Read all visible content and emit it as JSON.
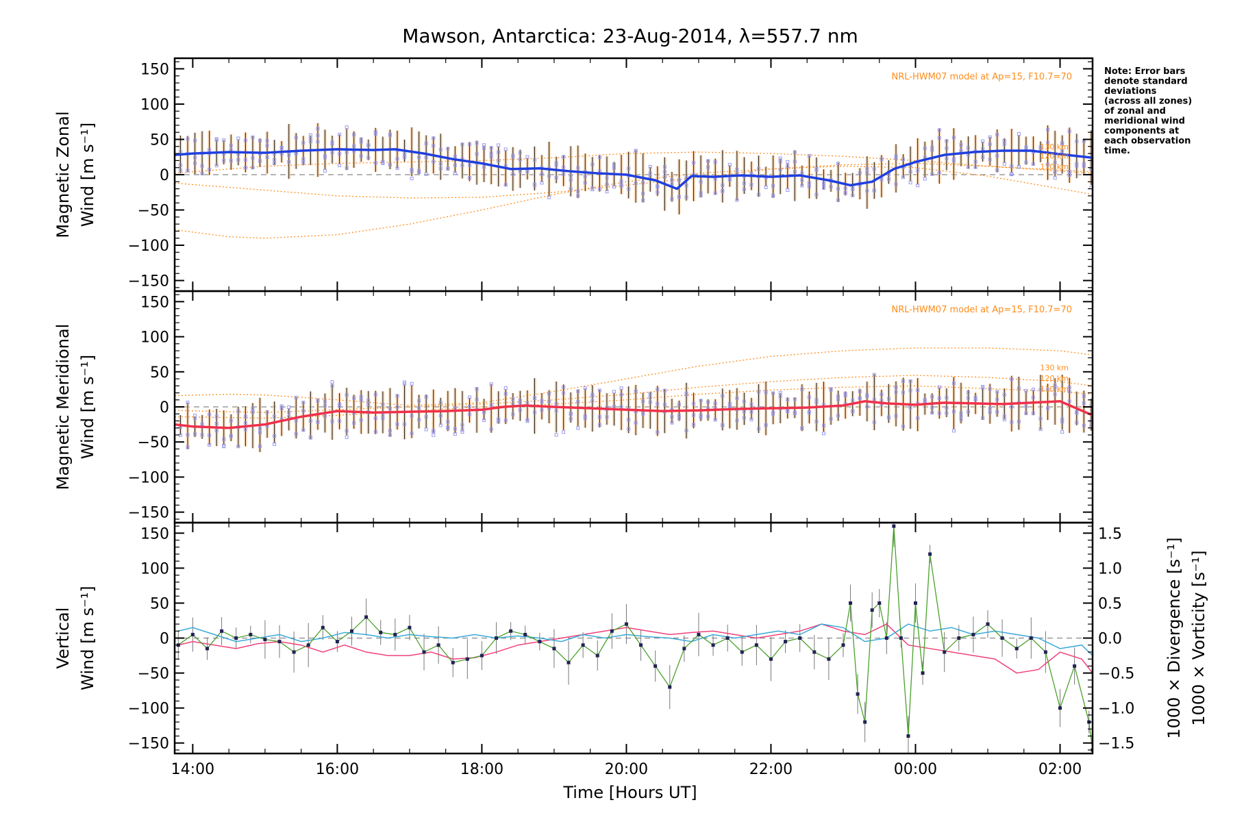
{
  "title": "Mawson, Antarctica: 23-Aug-2014, λ=557.7 nm",
  "xlabel": "Time [Hours UT]",
  "note_lines": [
    "Note: Error bars",
    "denote standard",
    "deviations",
    "(across all zones)",
    "of zonal and",
    "meridional wind",
    "components at",
    "each observation",
    "time."
  ],
  "colors": {
    "zonal": "#1f3fe0",
    "meridional": "#f0304a",
    "vertical": "#4aa02c",
    "divergence": "#39a8d8",
    "vorticity": "#f0407a",
    "model": "#ff8c1a",
    "zone_points": "#9999ee"
  },
  "chart_data": [
    {
      "type": "line",
      "panel": "zonal",
      "ylabel_lines": [
        "Magnetic Zonal",
        "Wind [m s⁻¹]"
      ],
      "model_label": "NRL-HWM07 model at Ap=15, F10.7=70",
      "altitude_labels": [
        "130 km",
        "120 km",
        "110 km"
      ],
      "ylim": [
        -165,
        165
      ],
      "yticks": [
        "150",
        "100",
        "50",
        "0",
        "−50",
        "−100",
        "−150"
      ],
      "xlim": [
        13.75,
        26.45
      ],
      "xticks": [
        "14:00",
        "16:00",
        "18:00",
        "20:00",
        "22:00",
        "00:00",
        "02:00"
      ],
      "series": [
        {
          "x": [
            13.75,
            14.0,
            14.5,
            15.0,
            15.5,
            16.0,
            16.5,
            16.8,
            17.2,
            17.6,
            18.0,
            18.4,
            18.8,
            19.2,
            19.6,
            20.0,
            20.4,
            20.7,
            20.9,
            21.2,
            21.6,
            22.0,
            22.4,
            22.8,
            23.1,
            23.4,
            23.7,
            24.0,
            24.4,
            24.8,
            25.2,
            25.6,
            26.0,
            26.45
          ],
          "y": [
            28,
            30,
            32,
            31,
            34,
            36,
            35,
            36,
            30,
            22,
            16,
            8,
            9,
            5,
            2,
            0,
            -8,
            -20,
            -2,
            -3,
            -1,
            -3,
            -1,
            -8,
            -15,
            -10,
            8,
            18,
            28,
            32,
            34,
            34,
            29,
            24
          ]
        }
      ],
      "model_lines": [
        {
          "x": [
            13.75,
            15,
            16,
            17,
            18,
            19,
            20,
            21,
            22,
            23,
            24,
            25,
            26.45
          ],
          "y": [
            2,
            12,
            16,
            18,
            20,
            24,
            30,
            32,
            30,
            26,
            20,
            12,
            2
          ]
        },
        {
          "x": [
            13.75,
            15,
            16,
            17,
            18,
            19,
            20,
            21,
            22,
            23,
            24,
            25,
            26.45
          ],
          "y": [
            -12,
            -22,
            -30,
            -33,
            -32,
            -25,
            -15,
            -4,
            8,
            14,
            16,
            12,
            4
          ]
        },
        {
          "x": [
            13.75,
            14.5,
            15,
            16,
            17,
            18,
            19,
            20,
            21,
            22,
            23,
            24,
            25,
            26.45
          ],
          "y": [
            -78,
            -88,
            -90,
            -85,
            -70,
            -50,
            -28,
            -10,
            2,
            8,
            12,
            10,
            -2,
            -28
          ]
        }
      ]
    },
    {
      "type": "line",
      "panel": "meridional",
      "ylabel_lines": [
        "Magnetic Meridional",
        "Wind [m s⁻¹]"
      ],
      "model_label": "NRL-HWM07 model at Ap=15, F10.7=70",
      "altitude_labels": [
        "130 km",
        "120 km",
        "110 km"
      ],
      "ylim": [
        -165,
        165
      ],
      "yticks": [
        "150",
        "100",
        "50",
        "0",
        "−50",
        "−100",
        "−150"
      ],
      "xlim": [
        13.75,
        26.45
      ],
      "xticks": [
        "14:00",
        "16:00",
        "18:00",
        "20:00",
        "22:00",
        "00:00",
        "02:00"
      ],
      "series": [
        {
          "x": [
            13.75,
            14.0,
            14.5,
            15.0,
            15.5,
            16.0,
            16.5,
            17.0,
            17.5,
            18.0,
            18.3,
            18.6,
            19.0,
            19.5,
            20.0,
            20.5,
            21.0,
            21.5,
            22.0,
            22.5,
            23.0,
            23.3,
            23.6,
            24.0,
            24.4,
            24.8,
            25.2,
            25.6,
            26.0,
            26.45
          ],
          "y": [
            -25,
            -28,
            -30,
            -25,
            -14,
            -6,
            -8,
            -7,
            -6,
            -4,
            0,
            2,
            0,
            -2,
            -4,
            -6,
            -5,
            -3,
            -2,
            -1,
            2,
            8,
            5,
            3,
            6,
            5,
            4,
            6,
            8,
            -12
          ]
        }
      ],
      "model_lines": [
        {
          "x": [
            13.75,
            14.5,
            15,
            16,
            17,
            18,
            19,
            20,
            21,
            22,
            23,
            24,
            25,
            26,
            26.45
          ],
          "y": [
            16,
            18,
            17,
            10,
            2,
            6,
            22,
            40,
            58,
            72,
            80,
            84,
            84,
            80,
            74
          ]
        },
        {
          "x": [
            13.75,
            15,
            16,
            17,
            18,
            19,
            20,
            21,
            22,
            23,
            24,
            25,
            26,
            26.45
          ],
          "y": [
            -5,
            -8,
            -4,
            0,
            4,
            10,
            18,
            28,
            36,
            42,
            45,
            42,
            36,
            30
          ]
        },
        {
          "x": [
            13.75,
            15,
            16,
            17,
            18,
            19,
            20,
            21,
            22,
            23,
            24,
            25,
            26,
            26.45
          ],
          "y": [
            -14,
            -16,
            -12,
            -6,
            0,
            4,
            10,
            18,
            24,
            28,
            30,
            26,
            22,
            18
          ]
        }
      ]
    },
    {
      "type": "line",
      "panel": "vertical",
      "ylabel_lines": [
        "Vertical",
        "Wind [m s⁻¹]"
      ],
      "ylim": [
        -165,
        165
      ],
      "yticks": [
        "150",
        "100",
        "50",
        "0",
        "−50",
        "−100",
        "−150"
      ],
      "y2label_lines": [
        "1000 × Divergence [s⁻¹]",
        "1000 × Vorticity [s⁻¹]"
      ],
      "y2lim": [
        -1.65,
        1.65
      ],
      "y2ticks": [
        "1.5",
        "1.0",
        "0.5",
        "0.0",
        "−0.5",
        "−1.0",
        "−1.5"
      ],
      "xlim": [
        13.75,
        26.45
      ],
      "xticks": [
        "14:00",
        "16:00",
        "18:00",
        "20:00",
        "22:00",
        "00:00",
        "02:00"
      ],
      "series": [
        {
          "name": "",
          "axis": "y",
          "x": [
            13.8,
            14.0,
            14.2,
            14.4,
            14.6,
            14.8,
            15.0,
            15.2,
            15.4,
            15.6,
            15.8,
            16.0,
            16.2,
            16.4,
            16.6,
            16.8,
            17.0,
            17.2,
            17.4,
            17.6,
            17.8,
            18.0,
            18.2,
            18.4,
            18.6,
            18.8,
            19.0,
            19.2,
            19.4,
            19.6,
            19.8,
            20.0,
            20.2,
            20.4,
            20.6,
            20.8,
            21.0,
            21.2,
            21.4,
            21.6,
            21.8,
            22.0,
            22.2,
            22.4,
            22.6,
            22.8,
            23.0,
            23.1,
            23.2,
            23.3,
            23.4,
            23.5,
            23.6,
            23.7,
            23.8,
            23.9,
            24.0,
            24.1,
            24.2,
            24.4,
            24.6,
            24.8,
            25.0,
            25.2,
            25.4,
            25.6,
            25.8,
            26.0,
            26.2,
            26.4,
            26.45
          ],
          "y": [
            -10,
            5,
            -15,
            10,
            0,
            5,
            -2,
            -5,
            -20,
            -10,
            15,
            -5,
            10,
            30,
            8,
            5,
            15,
            -20,
            -10,
            -35,
            -30,
            -25,
            0,
            10,
            5,
            -5,
            -15,
            -35,
            -10,
            -25,
            10,
            20,
            -10,
            -40,
            -70,
            -15,
            5,
            -10,
            0,
            -20,
            -10,
            -30,
            -5,
            0,
            -20,
            -30,
            -10,
            50,
            -80,
            -120,
            40,
            50,
            0,
            160,
            0,
            -140,
            50,
            -50,
            120,
            -20,
            0,
            5,
            20,
            0,
            -15,
            0,
            -20,
            -100,
            -40,
            -120,
            -160
          ]
        },
        {
          "name": "",
          "axis": "y2",
          "x": [
            13.8,
            14.0,
            14.3,
            14.6,
            14.9,
            15.2,
            15.5,
            15.8,
            16.1,
            16.4,
            16.7,
            17.0,
            17.3,
            17.6,
            17.9,
            18.2,
            18.5,
            18.8,
            19.1,
            19.4,
            19.7,
            20.0,
            20.3,
            20.6,
            20.9,
            21.2,
            21.5,
            21.8,
            22.1,
            22.4,
            22.7,
            23.0,
            23.3,
            23.6,
            23.9,
            24.2,
            24.5,
            24.8,
            25.1,
            25.4,
            25.7,
            26.0,
            26.3,
            26.45
          ],
          "y": [
            0.1,
            0.15,
            0.05,
            -0.05,
            0.0,
            0.05,
            -0.05,
            0.0,
            0.08,
            0.05,
            0.0,
            0.05,
            0.02,
            0.0,
            0.05,
            0.0,
            0.03,
            0.0,
            -0.05,
            0.05,
            0.0,
            0.05,
            0.02,
            0.0,
            -0.05,
            0.05,
            0.0,
            0.05,
            0.1,
            0.05,
            0.2,
            0.15,
            -0.05,
            0.0,
            0.2,
            0.1,
            0.15,
            0.05,
            0.1,
            0.05,
            0.0,
            -0.15,
            -0.1,
            -0.25
          ]
        },
        {
          "name": "",
          "axis": "y2",
          "x": [
            13.8,
            14.0,
            14.3,
            14.6,
            14.9,
            15.2,
            15.5,
            15.8,
            16.1,
            16.4,
            16.7,
            17.0,
            17.3,
            17.6,
            17.9,
            18.2,
            18.5,
            18.8,
            19.1,
            19.4,
            19.7,
            20.0,
            20.3,
            20.6,
            20.9,
            21.2,
            21.5,
            21.8,
            22.1,
            22.4,
            22.7,
            23.0,
            23.3,
            23.6,
            23.9,
            24.2,
            24.5,
            24.8,
            25.1,
            25.4,
            25.7,
            26.0,
            26.3,
            26.45
          ],
          "y": [
            -0.1,
            -0.05,
            -0.1,
            -0.15,
            -0.08,
            -0.05,
            -0.1,
            -0.2,
            -0.1,
            -0.2,
            -0.25,
            -0.25,
            -0.2,
            -0.3,
            -0.28,
            -0.2,
            -0.1,
            -0.05,
            0.0,
            0.05,
            0.1,
            0.15,
            0.1,
            0.05,
            0.08,
            0.1,
            0.05,
            0.0,
            0.05,
            0.1,
            0.2,
            0.1,
            0.05,
            0.2,
            -0.1,
            -0.15,
            -0.2,
            -0.25,
            -0.3,
            -0.5,
            -0.45,
            -0.2,
            -0.3,
            -0.5
          ]
        }
      ]
    }
  ]
}
